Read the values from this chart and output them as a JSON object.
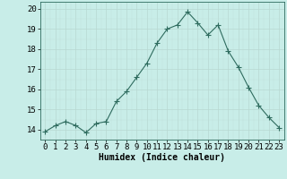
{
  "x": [
    0,
    1,
    2,
    3,
    4,
    5,
    6,
    7,
    8,
    9,
    10,
    11,
    12,
    13,
    14,
    15,
    16,
    17,
    18,
    19,
    20,
    21,
    22,
    23
  ],
  "y": [
    13.9,
    14.2,
    14.4,
    14.2,
    13.85,
    14.3,
    14.4,
    15.4,
    15.9,
    16.6,
    17.3,
    18.3,
    19.0,
    19.2,
    19.85,
    19.3,
    18.7,
    19.2,
    17.9,
    17.1,
    16.1,
    15.2,
    14.6,
    14.1
  ],
  "xlabel": "Humidex (Indice chaleur)",
  "xlim": [
    -0.5,
    23.5
  ],
  "ylim": [
    13.5,
    20.35
  ],
  "yticks": [
    14,
    15,
    16,
    17,
    18,
    19,
    20
  ],
  "xticks": [
    0,
    1,
    2,
    3,
    4,
    5,
    6,
    7,
    8,
    9,
    10,
    11,
    12,
    13,
    14,
    15,
    16,
    17,
    18,
    19,
    20,
    21,
    22,
    23
  ],
  "line_color": "#2E6B5E",
  "marker": "+",
  "bg_color": "#C8EDE8",
  "grid_color_major": "#B8D8D2",
  "grid_color_minor": "#C0E0DA",
  "label_fontsize": 7,
  "tick_fontsize": 6.5,
  "line_width": 0.8,
  "marker_size": 4
}
